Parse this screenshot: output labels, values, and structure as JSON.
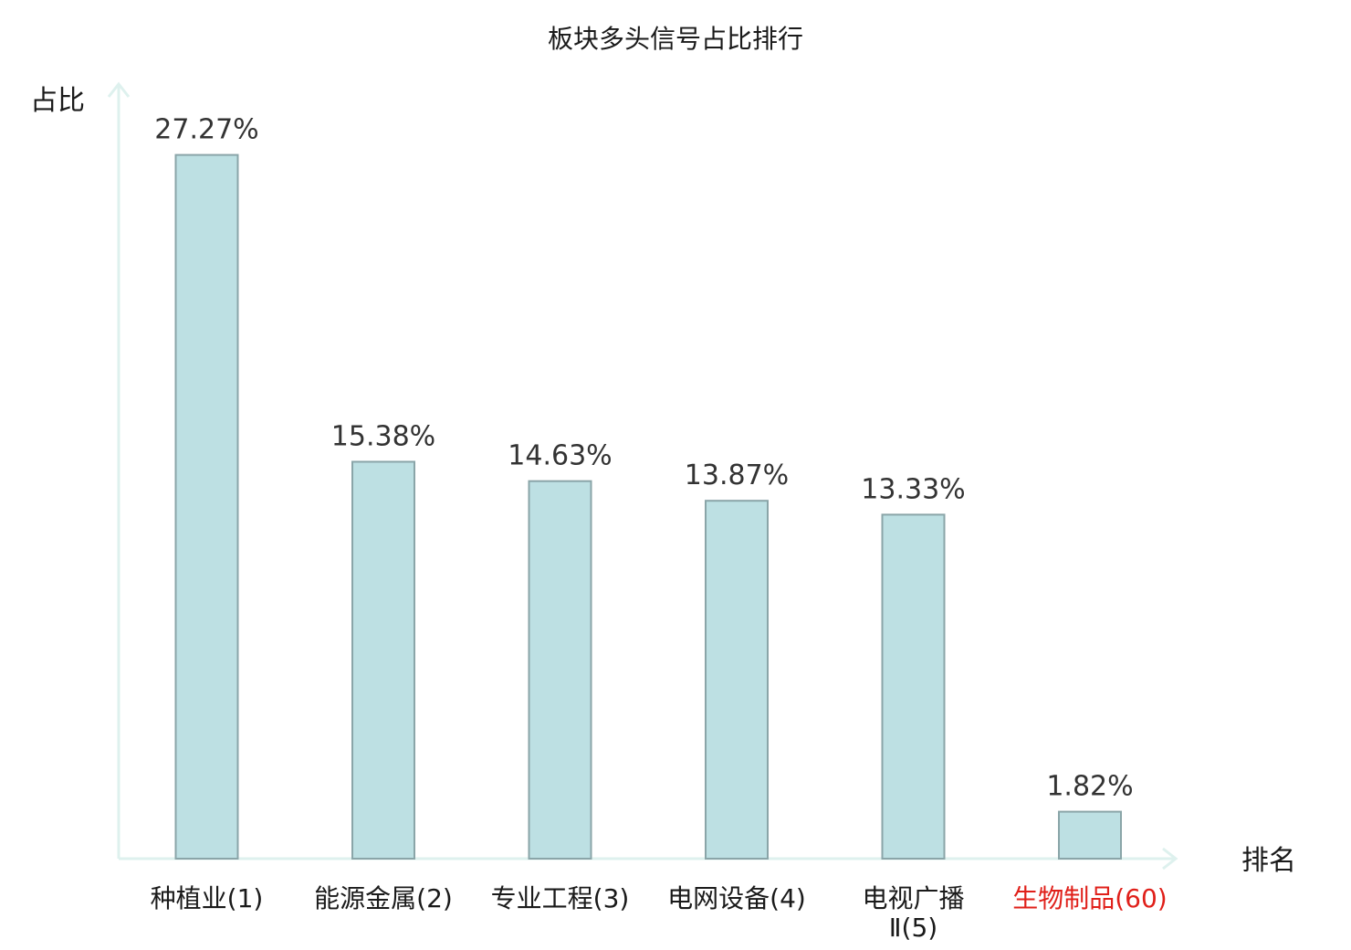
{
  "chart_data": {
    "type": "bar",
    "title": "板块多头信号占比排行",
    "ylabel": "占比",
    "xlabel": "排名",
    "ylim": [
      0,
      30
    ],
    "grid": false,
    "categories": [
      {
        "lines": [
          "种植业(1)"
        ],
        "highlight": false
      },
      {
        "lines": [
          "能源金属(2)"
        ],
        "highlight": false
      },
      {
        "lines": [
          "专业工程(3)"
        ],
        "highlight": false
      },
      {
        "lines": [
          "电网设备(4)"
        ],
        "highlight": false
      },
      {
        "lines": [
          "电视广播",
          "Ⅱ(5)"
        ],
        "highlight": false
      },
      {
        "lines": [
          "生物制品(60)"
        ],
        "highlight": true
      }
    ],
    "values": [
      27.27,
      15.38,
      14.63,
      13.87,
      13.33,
      1.82
    ],
    "value_labels": [
      "27.27%",
      "15.38%",
      "14.63%",
      "13.87%",
      "13.33%",
      "1.82%"
    ]
  },
  "colors": {
    "bar_fill": "#bde0e3",
    "bar_stroke": "#8aa5a8",
    "axis": "#def1ee",
    "label": "#1a1a1a",
    "highlight": "#e0201a"
  }
}
